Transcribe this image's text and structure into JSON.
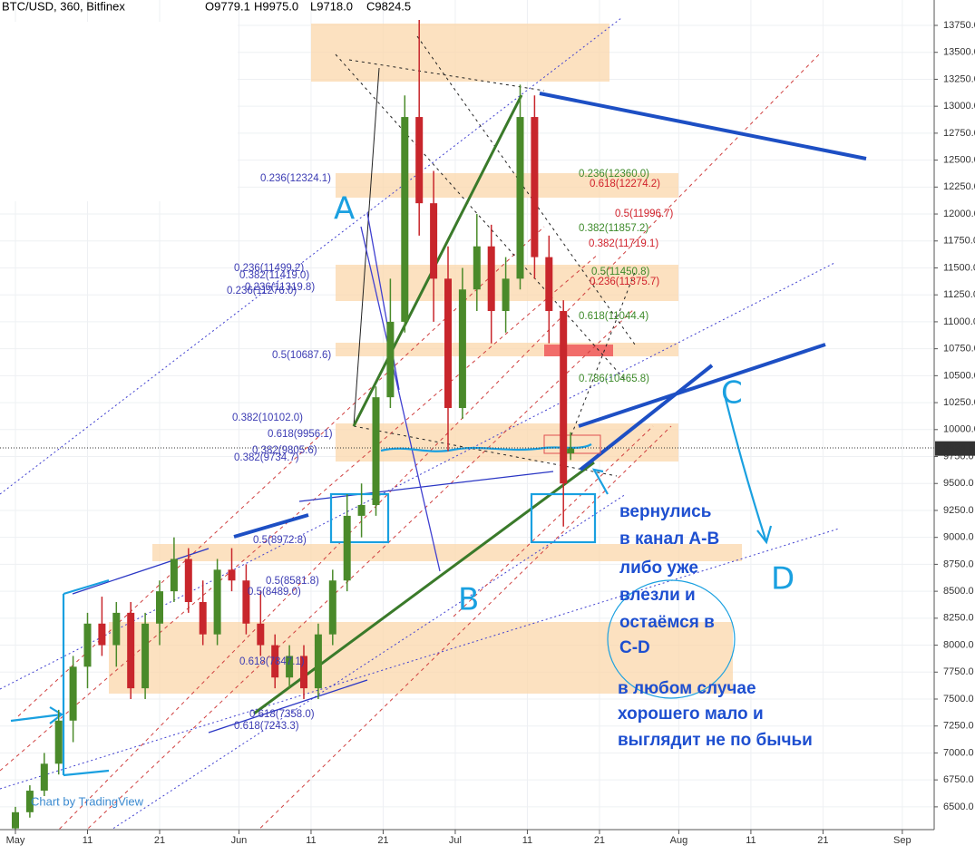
{
  "chart_data": {
    "type": "candlestick",
    "title": "BTC/USD, 360, Bitfinex",
    "ohlc_labels": [
      "O9779.1",
      "H9975.0",
      "L9718.0",
      "C9824.5"
    ],
    "last_price": 9824.5,
    "up_color": "#4a8a2a",
    "down_color": "#c8262c",
    "x": [
      "May 1",
      "May 3",
      "May 5",
      "May 7",
      "May 9",
      "May 11",
      "May 13",
      "May 15",
      "May 17",
      "May 19",
      "May 21",
      "May 23",
      "May 25",
      "May 27",
      "May 29",
      "May 31",
      "Jun 2",
      "Jun 4",
      "Jun 6",
      "Jun 8",
      "Jun 10",
      "Jun 12",
      "Jun 14",
      "Jun 16",
      "Jun 18",
      "Jun 20",
      "Jun 22",
      "Jun 24",
      "Jun 26",
      "Jun 28",
      "Jun 30",
      "Jul 2",
      "Jul 4",
      "Jul 6",
      "Jul 8",
      "Jul 10",
      "Jul 12",
      "Jul 14",
      "Jul 16",
      "Jul 17"
    ],
    "open": [
      6300,
      6450,
      6650,
      6900,
      7300,
      7800,
      8200,
      8000,
      8300,
      7600,
      8200,
      8500,
      8800,
      8400,
      8100,
      8700,
      8600,
      8200,
      8000,
      7700,
      7900,
      7600,
      8100,
      8600,
      9200,
      9300,
      10300,
      11000,
      12900,
      12100,
      11400,
      10200,
      11300,
      11700,
      11100,
      11400,
      12900,
      11600,
      11100,
      9779.1
    ],
    "high": [
      6500,
      6700,
      7000,
      7400,
      7900,
      8300,
      8450,
      8400,
      8400,
      8300,
      8600,
      9000,
      8900,
      8600,
      8800,
      8900,
      8750,
      8500,
      8100,
      8000,
      8000,
      8200,
      8700,
      9400,
      9500,
      10400,
      11400,
      13100,
      13800,
      12400,
      11700,
      11500,
      12000,
      11900,
      11600,
      13200,
      13100,
      11800,
      11200,
      9975.0
    ],
    "low": [
      6250,
      6400,
      6600,
      6800,
      7100,
      7600,
      7900,
      7800,
      7500,
      7500,
      8000,
      8400,
      8300,
      8000,
      8000,
      8500,
      8100,
      7900,
      7600,
      7600,
      7500,
      7500,
      8000,
      8500,
      9000,
      9200,
      10200,
      10900,
      11800,
      11000,
      9800,
      10100,
      11100,
      10800,
      10900,
      11300,
      11400,
      10800,
      9100,
      9718.0
    ],
    "close": [
      6450,
      6650,
      6900,
      7300,
      7800,
      8200,
      8000,
      8300,
      7600,
      8200,
      8500,
      8800,
      8400,
      8100,
      8700,
      8600,
      8200,
      8000,
      7700,
      7900,
      7600,
      8100,
      8600,
      9200,
      9300,
      10300,
      11000,
      12900,
      12100,
      11400,
      10200,
      11300,
      11700,
      11100,
      11400,
      12900,
      11600,
      11100,
      9500,
      9824.5
    ],
    "ylim": [
      6400,
      13850
    ],
    "yticks": [
      {
        "value": 6500,
        "label": "6500.0"
      },
      {
        "value": 6750,
        "label": "6750.0"
      },
      {
        "value": 7000,
        "label": "7000.0"
      },
      {
        "value": 7250,
        "label": "7250.0"
      },
      {
        "value": 7500,
        "label": "7500.0"
      },
      {
        "value": 7750,
        "label": "7750.0"
      },
      {
        "value": 8000,
        "label": "8000.0"
      },
      {
        "value": 8250,
        "label": "8250.0"
      },
      {
        "value": 8500,
        "label": "8500.0"
      },
      {
        "value": 8750,
        "label": "8750.0"
      },
      {
        "value": 9000,
        "label": "9000.0"
      },
      {
        "value": 9250,
        "label": "9250.0"
      },
      {
        "value": 9500,
        "label": "9500.0"
      },
      {
        "value": 9750,
        "label": "9750.0"
      },
      {
        "value": 10000,
        "label": "10000.0"
      },
      {
        "value": 10250,
        "label": "10250.0"
      },
      {
        "value": 10500,
        "label": "10500.0"
      },
      {
        "value": 10750,
        "label": "10750.0"
      },
      {
        "value": 11000,
        "label": "11000.0"
      },
      {
        "value": 11250,
        "label": "11250.0"
      },
      {
        "value": 11500,
        "label": "11500.0"
      },
      {
        "value": 11750,
        "label": "11750.0"
      },
      {
        "value": 12000,
        "label": "12000.0"
      },
      {
        "value": 12250,
        "label": "12250.0"
      },
      {
        "value": 12500,
        "label": "12500.0"
      },
      {
        "value": 12750,
        "label": "12750.0"
      },
      {
        "value": 13000,
        "label": "13000.0"
      },
      {
        "value": 13250,
        "label": "13250.0"
      },
      {
        "value": 13500,
        "label": "13500.0"
      },
      {
        "value": 13750,
        "label": "13750.0"
      }
    ],
    "xticks": [
      {
        "value": "May 1",
        "label": "May"
      },
      {
        "value": "May 11",
        "label": "11"
      },
      {
        "value": "May 21",
        "label": "21"
      },
      {
        "value": "Jun 1",
        "label": "Jun"
      },
      {
        "value": "Jun 11",
        "label": "11"
      },
      {
        "value": "Jun 21",
        "label": "21"
      },
      {
        "value": "Jul 1",
        "label": "Jul"
      },
      {
        "value": "Jul 11",
        "label": "11"
      },
      {
        "value": "Jul 21",
        "label": "21"
      },
      {
        "value": "Aug 1",
        "label": "Aug"
      },
      {
        "value": "Aug 11",
        "label": "11"
      },
      {
        "value": "Aug 21",
        "label": "21"
      },
      {
        "value": "Sep 1",
        "label": "Sep"
      }
    ],
    "grid": true,
    "fib_labels": [
      {
        "text": "0.236(12324.1)",
        "color": "#3b3bb3"
      },
      {
        "text": "0.236(11499.2)",
        "color": "#3b3bb3"
      },
      {
        "text": "0.382(11419.0)",
        "color": "#3b3bb3"
      },
      {
        "text": "0.236(11319.8)",
        "color": "#3b3bb3"
      },
      {
        "text": "0.236(11276.0)",
        "color": "#3b3bb3"
      },
      {
        "text": "0.5(10687.6)",
        "color": "#3b3bb3"
      },
      {
        "text": "0.382(10102.0)",
        "color": "#3b3bb3"
      },
      {
        "text": "0.618(9956.1)",
        "color": "#3b3bb3"
      },
      {
        "text": "0.382(9805.6)",
        "color": "#3b3bb3"
      },
      {
        "text": "0.382(9734.7)",
        "color": "#3b3bb3"
      },
      {
        "text": "0.5(8972.8)",
        "color": "#3b3bb3"
      },
      {
        "text": "0.5(8581.8)",
        "color": "#3b3bb3"
      },
      {
        "text": "0.5(8489.0)",
        "color": "#3b3bb3"
      },
      {
        "text": "0.618(7847.1)",
        "color": "#3b3bb3"
      },
      {
        "text": "0.618(7358.0)",
        "color": "#3b3bb3"
      },
      {
        "text": "0.618(7243.3)",
        "color": "#3b3bb3"
      },
      {
        "text": "0.236(12360.0)",
        "color": "#3d8a2a"
      },
      {
        "text": "0.382(11857.2)",
        "color": "#3d8a2a"
      },
      {
        "text": "0.5(11450.8)",
        "color": "#3d8a2a"
      },
      {
        "text": "0.618(11044.4)",
        "color": "#3d8a2a"
      },
      {
        "text": "0.786(10465.8)",
        "color": "#3d8a2a"
      },
      {
        "text": "0.618(12274.2)",
        "color": "#d0202a"
      },
      {
        "text": "0.5(11996.7)",
        "color": "#d0202a"
      },
      {
        "text": "0.382(11719.1)",
        "color": "#d0202a"
      },
      {
        "text": "0.236(11375.7)",
        "color": "#d0202a"
      }
    ],
    "letters": [
      "A",
      "B",
      "C",
      "D"
    ],
    "note_lines": [
      "вернулись",
      "в канал A-B",
      "либо уже",
      "влезли  и",
      "остаёмся в",
      "C-D",
      "в любом случае",
      "хорошего мало и",
      "выглядит не по бычьи"
    ],
    "watermark": "Chart by TradingView"
  }
}
